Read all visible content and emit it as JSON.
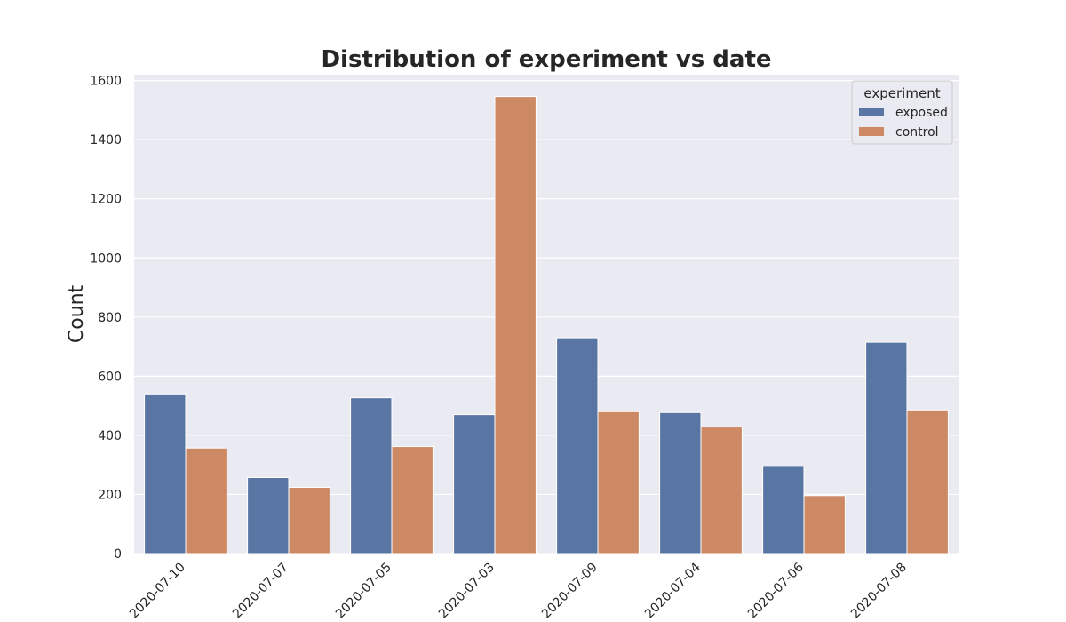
{
  "chart_data": {
    "type": "bar",
    "title": "Distribution of experiment vs date",
    "xlabel": "",
    "ylabel": "Count",
    "ylim": [
      0,
      1620
    ],
    "yticks": [
      0,
      200,
      400,
      600,
      800,
      1000,
      1200,
      1400,
      1600
    ],
    "categories": [
      "2020-07-10",
      "2020-07-07",
      "2020-07-05",
      "2020-07-03",
      "2020-07-09",
      "2020-07-04",
      "2020-07-06",
      "2020-07-08"
    ],
    "series": [
      {
        "name": "exposed",
        "color": "#5975a4",
        "values": [
          540,
          257,
          527,
          470,
          730,
          477,
          295,
          715
        ]
      },
      {
        "name": "control",
        "color": "#cc8963",
        "values": [
          357,
          224,
          362,
          1546,
          480,
          428,
          196,
          486
        ]
      }
    ],
    "legend": {
      "title": "experiment",
      "placement": "top-right"
    },
    "grid": true
  }
}
